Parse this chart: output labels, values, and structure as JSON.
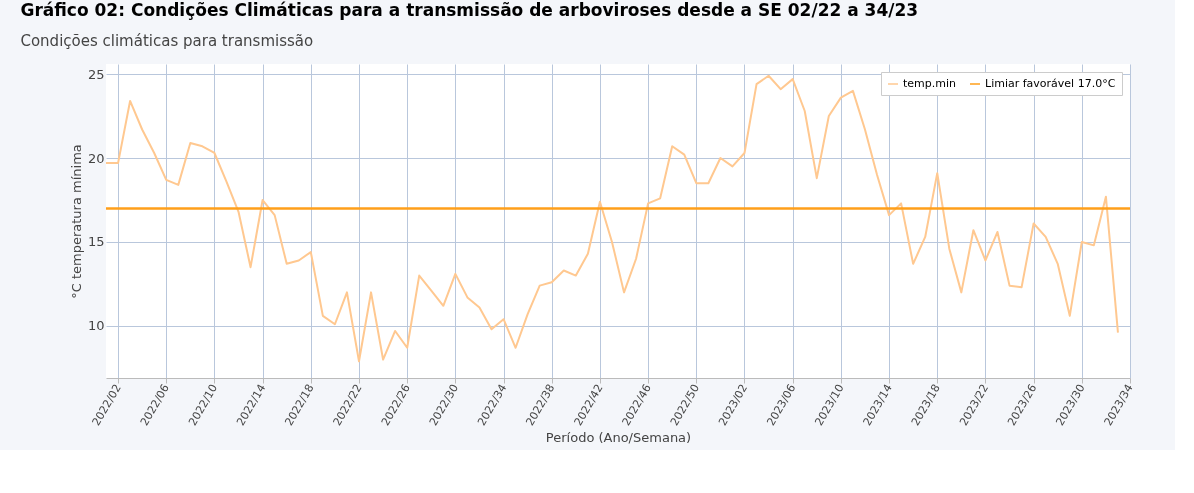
{
  "chart_data": {
    "type": "line",
    "title": "Gráfico 02: Condições Climáticas para a transmissão de arboviroses desde a SE 02/22 a 34/23",
    "subtitle": "Condições climáticas para transmissão",
    "xlabel": "Período (Ano/Semana)",
    "ylabel": "°C temperatura mínima",
    "categories": [
      null,
      "2022/02",
      null,
      null,
      null,
      "2022/06",
      null,
      null,
      null,
      "2022/10",
      null,
      null,
      null,
      "2022/14",
      null,
      null,
      null,
      "2022/18",
      null,
      null,
      null,
      "2022/22",
      null,
      null,
      null,
      "2022/26",
      null,
      null,
      null,
      "2022/30",
      null,
      null,
      null,
      "2022/34",
      null,
      null,
      null,
      "2022/38",
      null,
      null,
      null,
      "2022/42",
      null,
      null,
      null,
      "2022/46",
      null,
      null,
      null,
      "2022/50",
      null,
      null,
      null,
      "2023/02",
      null,
      null,
      null,
      "2023/06",
      null,
      null,
      null,
      "2023/10",
      null,
      null,
      null,
      "2023/14",
      null,
      null,
      null,
      "2023/18",
      null,
      null,
      null,
      "2023/22",
      null,
      null,
      null,
      "2023/26",
      null,
      null,
      null,
      "2023/30",
      null,
      null,
      null,
      "2023/34"
    ],
    "series": [
      {
        "name": "temp.min",
        "color": "#ffc890",
        "values": [
          19.7,
          19.7,
          23.4,
          21.7,
          20.3,
          18.7,
          18.4,
          20.9,
          20.7,
          20.3,
          18.6,
          16.8,
          13.5,
          17.5,
          16.6,
          13.7,
          13.9,
          14.4,
          10.6,
          10.1,
          12.0,
          7.9,
          12.0,
          8.0,
          9.7,
          8.7,
          13.0,
          12.1,
          11.2,
          13.1,
          11.7,
          11.1,
          9.8,
          10.4,
          8.7,
          10.7,
          12.4,
          12.6,
          13.3,
          13.0,
          14.3,
          17.4,
          15.0,
          12.0,
          14.0,
          17.3,
          17.6,
          20.7,
          20.2,
          18.5,
          18.5,
          20.0,
          19.5,
          20.3,
          24.4,
          24.9,
          24.1,
          24.7,
          22.8,
          18.8,
          22.5,
          23.6,
          24.0,
          21.7,
          19.0,
          16.6,
          17.3,
          13.7,
          15.3,
          19.1,
          14.6,
          12.0,
          15.7,
          13.9,
          15.6,
          12.4,
          12.3,
          16.1,
          15.3,
          13.7,
          10.6,
          15.0,
          14.8,
          17.7,
          9.6,
          null
        ]
      }
    ],
    "ref_lines": [
      {
        "axis": "y",
        "value": 17.0,
        "label": "Limiar favorável 17.0°C",
        "color": "#ff9f1a"
      }
    ],
    "ylim": [
      6.9,
      25.6
    ],
    "yticks": [
      10,
      15,
      20,
      25
    ],
    "grid": true,
    "legend": "top right",
    "line_style": "solid",
    "marker": "none"
  }
}
